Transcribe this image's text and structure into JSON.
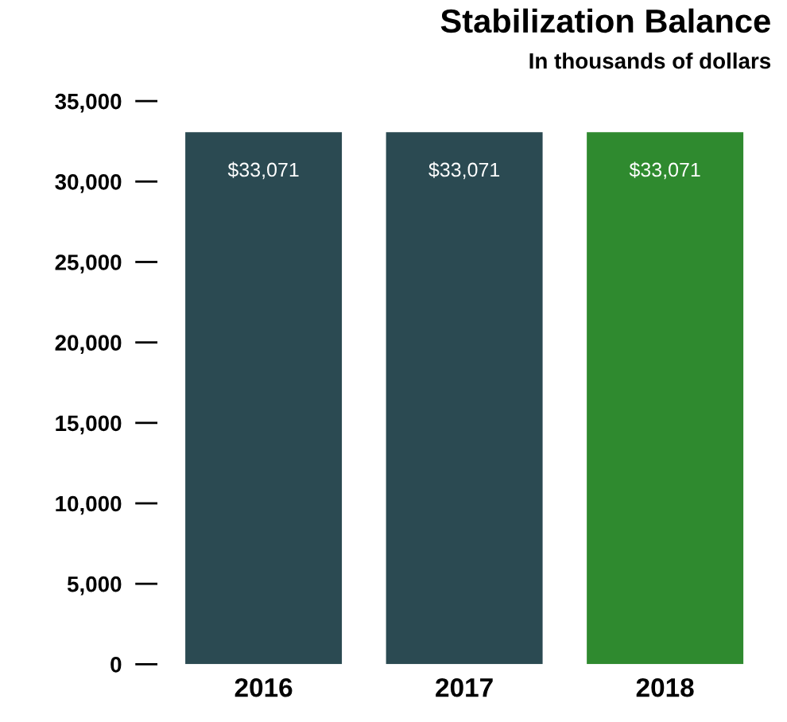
{
  "chart_data": {
    "type": "bar",
    "title": "Stabilization Balance",
    "subtitle": "In thousands of dollars",
    "categories": [
      "2016",
      "2017",
      "2018"
    ],
    "values": [
      33071,
      33071,
      33071
    ],
    "colors": [
      "#2b4a52",
      "#2b4a52",
      "#2f8a2f"
    ],
    "value_labels": [
      "$33,071",
      "$33,071",
      "$33,071"
    ],
    "ylim": [
      0,
      35000
    ],
    "yticks": [
      {
        "value": 0,
        "label": "0"
      },
      {
        "value": 5000,
        "label": "5,000"
      },
      {
        "value": 10000,
        "label": "10,000"
      },
      {
        "value": 15000,
        "label": "15,000"
      },
      {
        "value": 20000,
        "label": "20,000"
      },
      {
        "value": 25000,
        "label": "25,000"
      },
      {
        "value": 30000,
        "label": "30,000"
      },
      {
        "value": 35000,
        "label": "35,000"
      }
    ],
    "grid": false,
    "legend": false
  }
}
